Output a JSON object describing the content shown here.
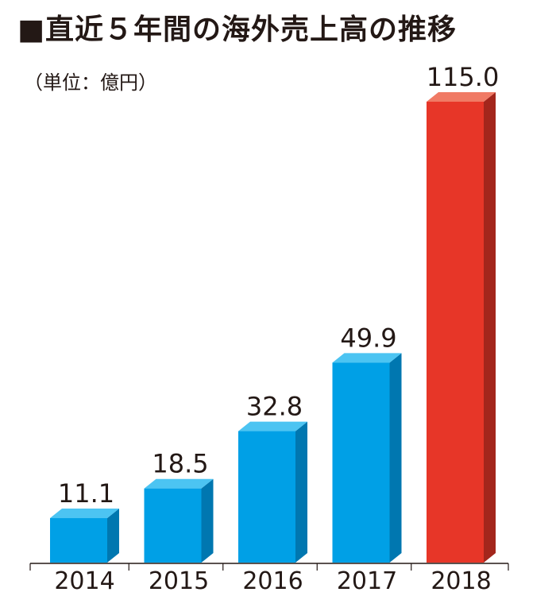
{
  "title": "■直近５年間の海外売上高の推移",
  "unit_label": "（単位：億円）",
  "chart_data": {
    "type": "bar",
    "categories": [
      "2014",
      "2015",
      "2016",
      "2017",
      "2018"
    ],
    "values": [
      11.1,
      18.5,
      32.8,
      49.9,
      115.0
    ],
    "value_labels": [
      "11.1",
      "18.5",
      "32.8",
      "49.9",
      "115.0"
    ],
    "title": "直近５年間の海外売上高の推移",
    "ylabel": "",
    "unit": "億円",
    "ylim": [
      0,
      115.0
    ],
    "grid": false,
    "colors": {
      "normal": {
        "front": "#00a0e6",
        "top": "#4cc4f2",
        "side": "#0077b0"
      },
      "highlight": {
        "front": "#e73628",
        "top": "#f07a65",
        "side": "#a3261c"
      }
    },
    "highlight_category": "2018"
  }
}
